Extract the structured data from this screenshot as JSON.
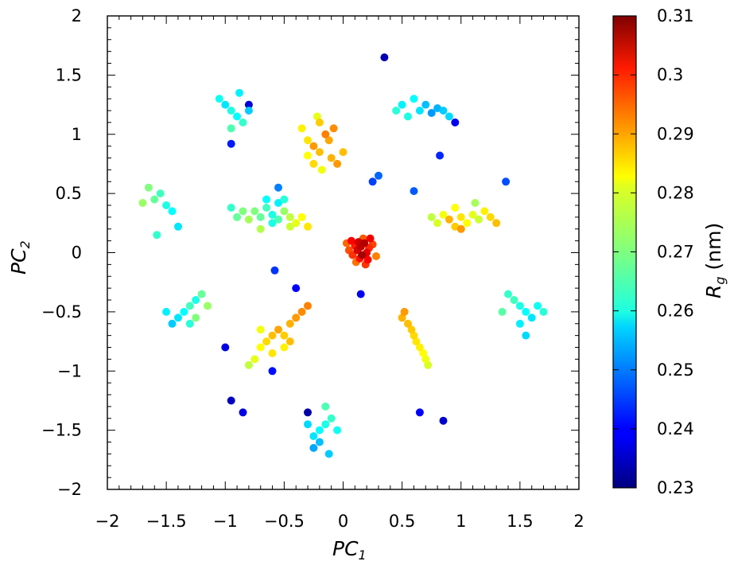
{
  "chart_data": {
    "type": "scatter",
    "title": "",
    "xlabel": "PC",
    "xlabel_sub": "1",
    "ylabel": "PC",
    "ylabel_sub": "2",
    "xlim": [
      -2,
      2
    ],
    "ylim": [
      -2,
      2
    ],
    "x_ticks": [
      -2,
      -1.5,
      -1,
      -0.5,
      0,
      0.5,
      1,
      1.5,
      2
    ],
    "x_tick_labels": [
      "−2",
      "−1.5",
      "−1",
      "−0.5",
      "0",
      "0.5",
      "1",
      "1.5",
      "2"
    ],
    "y_ticks": [
      -2,
      -1.5,
      -1,
      -0.5,
      0,
      0.5,
      1,
      1.5,
      2
    ],
    "y_tick_labels": [
      "−2",
      "−1.5",
      "−1",
      "−0.5",
      "0",
      "0.5",
      "1",
      "1.5",
      "2"
    ],
    "grid": false,
    "colorbar": {
      "label": "R",
      "label_sub": "g",
      "unit": "(nm)",
      "range": [
        0.23,
        0.31
      ],
      "ticks": [
        0.23,
        0.24,
        0.25,
        0.26,
        0.27,
        0.28,
        0.29,
        0.3,
        0.31
      ],
      "tick_labels": [
        "0.23",
        "0.24",
        "0.25",
        "0.26",
        "0.27",
        "0.28",
        "0.29",
        "0.3",
        "0.31"
      ],
      "colormap": "jet"
    },
    "points": [
      [
        0.15,
        0.05,
        0.305
      ],
      [
        0.12,
        0.02,
        0.303
      ],
      [
        0.18,
        0.08,
        0.306
      ],
      [
        0.1,
        0.06,
        0.298
      ],
      [
        0.2,
        0.0,
        0.302
      ],
      [
        0.08,
        -0.02,
        0.296
      ],
      [
        0.22,
        0.04,
        0.297
      ],
      [
        0.14,
        -0.05,
        0.299
      ],
      [
        0.05,
        0.02,
        0.294
      ],
      [
        0.25,
        0.07,
        0.295
      ],
      [
        0.17,
        0.12,
        0.293
      ],
      [
        0.11,
        -0.08,
        0.291
      ],
      [
        0.28,
        -0.03,
        0.29
      ],
      [
        0.03,
        0.08,
        0.292
      ],
      [
        0.19,
        -0.1,
        0.296
      ],
      [
        0.23,
        0.12,
        0.301
      ],
      [
        0.07,
        0.1,
        0.3
      ],
      [
        0.13,
        0.09,
        0.304
      ],
      [
        0.16,
        -0.02,
        0.307
      ],
      [
        0.21,
        -0.06,
        0.3
      ],
      [
        -0.25,
        0.9,
        0.288
      ],
      [
        -0.2,
        0.85,
        0.285
      ],
      [
        -0.3,
        0.95,
        0.282
      ],
      [
        -0.15,
        1.0,
        0.29
      ],
      [
        -0.1,
        0.8,
        0.286
      ],
      [
        -0.2,
        1.1,
        0.284
      ],
      [
        -0.35,
        1.05,
        0.281
      ],
      [
        -0.05,
        0.75,
        0.288
      ],
      [
        -0.25,
        0.75,
        0.283
      ],
      [
        -0.18,
        0.7,
        0.279
      ],
      [
        -0.12,
        0.95,
        0.287
      ],
      [
        -0.3,
        0.82,
        0.28
      ],
      [
        -0.08,
        1.05,
        0.289
      ],
      [
        0.0,
        0.85,
        0.285
      ],
      [
        -0.22,
        1.15,
        0.278
      ],
      [
        -0.75,
        0.35,
        0.27
      ],
      [
        -0.7,
        0.3,
        0.268
      ],
      [
        -0.65,
        0.38,
        0.265
      ],
      [
        -0.6,
        0.32,
        0.262
      ],
      [
        -0.55,
        0.28,
        0.266
      ],
      [
        -0.5,
        0.35,
        0.272
      ],
      [
        -0.45,
        0.3,
        0.275
      ],
      [
        -0.4,
        0.25,
        0.278
      ],
      [
        -0.35,
        0.3,
        0.28
      ],
      [
        -0.8,
        0.28,
        0.273
      ],
      [
        -0.85,
        0.35,
        0.27
      ],
      [
        -0.9,
        0.3,
        0.268
      ],
      [
        -0.95,
        0.38,
        0.264
      ],
      [
        -0.6,
        0.25,
        0.262
      ],
      [
        -0.65,
        0.45,
        0.26
      ],
      [
        -0.55,
        0.42,
        0.259
      ],
      [
        -0.7,
        0.2,
        0.274
      ],
      [
        -0.45,
        0.22,
        0.276
      ],
      [
        -0.3,
        0.22,
        0.282
      ],
      [
        -0.5,
        0.45,
        0.263
      ],
      [
        1.0,
        0.3,
        0.282
      ],
      [
        1.05,
        0.25,
        0.28
      ],
      [
        1.1,
        0.32,
        0.278
      ],
      [
        0.95,
        0.22,
        0.284
      ],
      [
        0.9,
        0.28,
        0.286
      ],
      [
        1.15,
        0.28,
        0.276
      ],
      [
        1.2,
        0.35,
        0.281
      ],
      [
        0.85,
        0.32,
        0.279
      ],
      [
        1.25,
        0.3,
        0.283
      ],
      [
        0.8,
        0.25,
        0.277
      ],
      [
        1.3,
        0.25,
        0.285
      ],
      [
        1.0,
        0.2,
        0.288
      ],
      [
        0.75,
        0.3,
        0.275
      ],
      [
        1.12,
        0.42,
        0.273
      ],
      [
        0.95,
        0.38,
        0.28
      ],
      [
        -0.6,
        -0.7,
        0.285
      ],
      [
        -0.65,
        -0.75,
        0.283
      ],
      [
        -0.55,
        -0.65,
        0.287
      ],
      [
        -0.5,
        -0.7,
        0.284
      ],
      [
        -0.7,
        -0.8,
        0.28
      ],
      [
        -0.75,
        -0.9,
        0.278
      ],
      [
        -0.45,
        -0.6,
        0.286
      ],
      [
        -0.4,
        -0.55,
        0.288
      ],
      [
        -0.8,
        -0.95,
        0.275
      ],
      [
        -0.35,
        -0.5,
        0.289
      ],
      [
        -0.6,
        -0.85,
        0.282
      ],
      [
        -0.5,
        -0.8,
        0.281
      ],
      [
        -0.3,
        -0.45,
        0.29
      ],
      [
        -0.7,
        -0.65,
        0.279
      ],
      [
        -0.45,
        -0.75,
        0.285
      ],
      [
        0.55,
        -0.6,
        0.285
      ],
      [
        0.6,
        -0.7,
        0.283
      ],
      [
        0.65,
        -0.8,
        0.281
      ],
      [
        0.5,
        -0.55,
        0.286
      ],
      [
        0.7,
        -0.9,
        0.279
      ],
      [
        0.58,
        -0.65,
        0.284
      ],
      [
        0.62,
        -0.75,
        0.282
      ],
      [
        0.68,
        -0.85,
        0.28
      ],
      [
        0.52,
        -0.5,
        0.288
      ],
      [
        0.72,
        -0.95,
        0.277
      ],
      [
        -1.3,
        -0.45,
        0.265
      ],
      [
        -1.25,
        -0.4,
        0.262
      ],
      [
        -1.35,
        -0.5,
        0.26
      ],
      [
        -1.4,
        -0.55,
        0.258
      ],
      [
        -1.2,
        -0.35,
        0.268
      ],
      [
        -1.45,
        -0.6,
        0.256
      ],
      [
        -1.3,
        -0.6,
        0.263
      ],
      [
        -1.25,
        -0.55,
        0.27
      ],
      [
        -1.5,
        -0.5,
        0.259
      ],
      [
        -1.15,
        -0.45,
        0.272
      ],
      [
        1.5,
        -0.45,
        0.262
      ],
      [
        1.55,
        -0.5,
        0.26
      ],
      [
        1.45,
        -0.4,
        0.265
      ],
      [
        1.6,
        -0.55,
        0.258
      ],
      [
        1.4,
        -0.35,
        0.264
      ],
      [
        1.65,
        -0.45,
        0.261
      ],
      [
        1.5,
        -0.6,
        0.259
      ],
      [
        1.7,
        -0.5,
        0.263
      ],
      [
        1.35,
        -0.5,
        0.267
      ],
      [
        1.55,
        -0.7,
        0.257
      ],
      [
        -0.2,
        -1.5,
        0.26
      ],
      [
        -0.15,
        -1.45,
        0.262
      ],
      [
        -0.25,
        -1.55,
        0.258
      ],
      [
        -0.1,
        -1.4,
        0.264
      ],
      [
        -0.2,
        -1.6,
        0.255
      ],
      [
        -0.15,
        -1.3,
        0.266
      ],
      [
        -0.25,
        -1.65,
        0.253
      ],
      [
        -0.05,
        -1.5,
        0.261
      ],
      [
        -0.3,
        -1.45,
        0.257
      ],
      [
        -0.12,
        -1.7,
        0.256
      ],
      [
        0.65,
        1.2,
        0.258
      ],
      [
        0.7,
        1.25,
        0.255
      ],
      [
        0.75,
        1.18,
        0.252
      ],
      [
        0.6,
        1.3,
        0.26
      ],
      [
        0.8,
        1.22,
        0.254
      ],
      [
        0.55,
        1.15,
        0.262
      ],
      [
        0.85,
        1.2,
        0.256
      ],
      [
        0.5,
        1.25,
        0.259
      ],
      [
        0.9,
        1.15,
        0.257
      ],
      [
        0.45,
        1.2,
        0.263
      ],
      [
        -0.95,
        1.2,
        0.262
      ],
      [
        -0.9,
        1.15,
        0.26
      ],
      [
        -1.0,
        1.25,
        0.258
      ],
      [
        -0.85,
        1.1,
        0.264
      ],
      [
        -1.05,
        1.3,
        0.261
      ],
      [
        -0.8,
        1.2,
        0.256
      ],
      [
        -0.95,
        1.05,
        0.266
      ],
      [
        -0.88,
        1.35,
        0.259
      ],
      [
        -1.6,
        0.45,
        0.268
      ],
      [
        -1.55,
        0.5,
        0.265
      ],
      [
        -1.5,
        0.4,
        0.262
      ],
      [
        -1.65,
        0.55,
        0.27
      ],
      [
        -1.45,
        0.35,
        0.26
      ],
      [
        -1.7,
        0.42,
        0.272
      ],
      [
        -1.58,
        0.15,
        0.264
      ],
      [
        -1.4,
        0.22,
        0.258
      ],
      [
        -0.95,
        -1.25,
        0.235
      ],
      [
        -0.85,
        -1.35,
        0.238
      ],
      [
        -0.3,
        -1.35,
        0.233
      ],
      [
        0.35,
        1.65,
        0.234
      ],
      [
        0.85,
        -1.42,
        0.236
      ],
      [
        0.65,
        -1.35,
        0.24
      ],
      [
        0.25,
        0.6,
        0.245
      ],
      [
        0.3,
        0.65,
        0.248
      ],
      [
        -0.95,
        0.92,
        0.242
      ],
      [
        0.6,
        0.52,
        0.247
      ],
      [
        -0.55,
        0.55,
        0.25
      ],
      [
        -0.8,
        1.25,
        0.237
      ],
      [
        0.95,
        1.1,
        0.239
      ],
      [
        0.82,
        0.82,
        0.243
      ],
      [
        1.38,
        0.6,
        0.246
      ],
      [
        -0.4,
        -0.3,
        0.24
      ],
      [
        -0.6,
        -1.0,
        0.241
      ],
      [
        -1.0,
        -0.8,
        0.238
      ],
      [
        0.15,
        -0.35,
        0.239
      ],
      [
        -0.58,
        -0.15,
        0.244
      ]
    ]
  }
}
